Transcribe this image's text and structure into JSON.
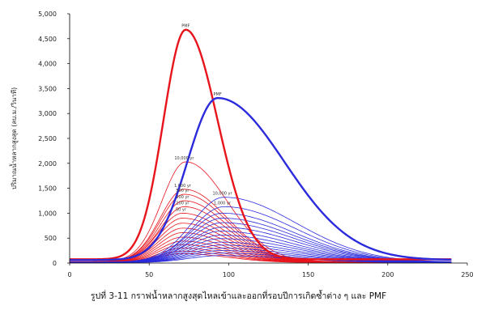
{
  "caption": "รูปที่ 3-11  กราฟน้ำหลากสูงสุดไหลเข้าและออกที่รอบปีการเกิดซ้ำต่าง ๆ และ PMF",
  "colors": {
    "inflow": "#e8141c",
    "outflow": "#2b2bdc",
    "axis": "#000000"
  },
  "chart_data": {
    "type": "line",
    "title": "",
    "xlabel": "",
    "ylabel": "ปริมาณน้ำหลากสูงสุด (ลบ.ม./วินาที)",
    "xlim": [
      0,
      250
    ],
    "ylim": [
      0,
      5000
    ],
    "x_ticks": [
      0,
      50,
      100,
      150,
      200,
      250
    ],
    "x_tick_labels": [
      "0",
      "50",
      "100",
      "150",
      "200",
      "250"
    ],
    "y_ticks": [
      0,
      500,
      1000,
      1500,
      2000,
      2500,
      3000,
      3500,
      4000,
      4500,
      5000
    ],
    "y_tick_labels": [
      "0",
      "500",
      "1,000",
      "1,500",
      "2,000",
      "2,500",
      "3,000",
      "3,500",
      "4,000",
      "4,500",
      "5,000"
    ],
    "grid": false,
    "legend": "none",
    "x_range_data": [
      0,
      240
    ],
    "series": [
      {
        "group": "inflow",
        "label": "PMF",
        "peak_x": 73,
        "peak_y": 4680,
        "rise": 14,
        "fall": 20,
        "base": 75,
        "width": 2.4
      },
      {
        "group": "outflow",
        "label": "PMF",
        "peak_x": 93,
        "peak_y": 3310,
        "rise": 19,
        "fall": 42,
        "base": 60,
        "width": 2.4
      },
      {
        "group": "inflow",
        "label": "10,000 yr",
        "peak_x": 73,
        "peak_y": 2030,
        "rise": 15,
        "fall": 26,
        "base": 30,
        "width": 0.8
      },
      {
        "group": "inflow",
        "label": "1,000 yr",
        "peak_x": 72,
        "peak_y": 1480,
        "rise": 15,
        "fall": 27,
        "base": 25,
        "width": 0.8
      },
      {
        "group": "inflow",
        "label": "500 yr",
        "peak_x": 72,
        "peak_y": 1380,
        "rise": 15,
        "fall": 27,
        "base": 25,
        "width": 0.8
      },
      {
        "group": "inflow",
        "label": "200 yr",
        "peak_x": 72,
        "peak_y": 1250,
        "rise": 15,
        "fall": 27,
        "base": 22,
        "width": 0.8
      },
      {
        "group": "inflow",
        "label": "100 yr",
        "peak_x": 72,
        "peak_y": 1130,
        "rise": 15,
        "fall": 27,
        "base": 22,
        "width": 0.8
      },
      {
        "group": "inflow",
        "label": "50 yr",
        "peak_x": 71,
        "peak_y": 1000,
        "rise": 15,
        "fall": 28,
        "base": 20,
        "width": 0.8
      },
      {
        "group": "inflow",
        "label": "",
        "peak_x": 71,
        "peak_y": 900,
        "rise": 15,
        "fall": 28,
        "base": 20,
        "width": 0.8
      },
      {
        "group": "inflow",
        "label": "",
        "peak_x": 71,
        "peak_y": 800,
        "rise": 15,
        "fall": 28,
        "base": 18,
        "width": 0.8
      },
      {
        "group": "inflow",
        "label": "",
        "peak_x": 71,
        "peak_y": 700,
        "rise": 15,
        "fall": 28,
        "base": 18,
        "width": 0.8
      },
      {
        "group": "inflow",
        "label": "",
        "peak_x": 71,
        "peak_y": 610,
        "rise": 15,
        "fall": 28,
        "base": 15,
        "width": 0.8
      },
      {
        "group": "inflow",
        "label": "",
        "peak_x": 71,
        "peak_y": 520,
        "rise": 15,
        "fall": 28,
        "base": 15,
        "width": 0.8
      },
      {
        "group": "inflow",
        "label": "",
        "peak_x": 71,
        "peak_y": 440,
        "rise": 15,
        "fall": 28,
        "base": 12,
        "width": 0.8
      },
      {
        "group": "inflow",
        "label": "",
        "peak_x": 71,
        "peak_y": 370,
        "rise": 15,
        "fall": 28,
        "base": 12,
        "width": 0.8
      },
      {
        "group": "inflow",
        "label": "",
        "peak_x": 71,
        "peak_y": 300,
        "rise": 15,
        "fall": 28,
        "base": 10,
        "width": 0.8
      },
      {
        "group": "inflow",
        "label": "",
        "peak_x": 71,
        "peak_y": 240,
        "rise": 15,
        "fall": 28,
        "base": 10,
        "width": 0.8
      },
      {
        "group": "inflow",
        "label": "",
        "peak_x": 71,
        "peak_y": 190,
        "rise": 15,
        "fall": 28,
        "base": 8,
        "width": 0.8
      },
      {
        "group": "outflow",
        "label": "10,000 yr",
        "peak_x": 97,
        "peak_y": 1320,
        "rise": 20,
        "fall": 45,
        "base": 20,
        "width": 0.8
      },
      {
        "group": "outflow",
        "label": "1,000 yr",
        "peak_x": 97,
        "peak_y": 1130,
        "rise": 20,
        "fall": 45,
        "base": 18,
        "width": 0.8
      },
      {
        "group": "outflow",
        "label": "",
        "peak_x": 96,
        "peak_y": 1000,
        "rise": 20,
        "fall": 45,
        "base": 18,
        "width": 0.8
      },
      {
        "group": "outflow",
        "label": "",
        "peak_x": 96,
        "peak_y": 900,
        "rise": 20,
        "fall": 45,
        "base": 16,
        "width": 0.8
      },
      {
        "group": "outflow",
        "label": "",
        "peak_x": 96,
        "peak_y": 810,
        "rise": 20,
        "fall": 45,
        "base": 16,
        "width": 0.8
      },
      {
        "group": "outflow",
        "label": "",
        "peak_x": 96,
        "peak_y": 720,
        "rise": 20,
        "fall": 45,
        "base": 14,
        "width": 0.8
      },
      {
        "group": "outflow",
        "label": "",
        "peak_x": 95,
        "peak_y": 640,
        "rise": 20,
        "fall": 45,
        "base": 14,
        "width": 0.8
      },
      {
        "group": "outflow",
        "label": "",
        "peak_x": 95,
        "peak_y": 560,
        "rise": 20,
        "fall": 45,
        "base": 12,
        "width": 0.8
      },
      {
        "group": "outflow",
        "label": "",
        "peak_x": 95,
        "peak_y": 490,
        "rise": 20,
        "fall": 45,
        "base": 12,
        "width": 0.8
      },
      {
        "group": "outflow",
        "label": "",
        "peak_x": 95,
        "peak_y": 420,
        "rise": 20,
        "fall": 45,
        "base": 10,
        "width": 0.8
      },
      {
        "group": "outflow",
        "label": "",
        "peak_x": 95,
        "peak_y": 360,
        "rise": 20,
        "fall": 45,
        "base": 10,
        "width": 0.8
      },
      {
        "group": "outflow",
        "label": "",
        "peak_x": 95,
        "peak_y": 300,
        "rise": 20,
        "fall": 45,
        "base": 8,
        "width": 0.8
      },
      {
        "group": "outflow",
        "label": "",
        "peak_x": 95,
        "peak_y": 250,
        "rise": 20,
        "fall": 45,
        "base": 8,
        "width": 0.8
      },
      {
        "group": "outflow",
        "label": "",
        "peak_x": 95,
        "peak_y": 200,
        "rise": 20,
        "fall": 45,
        "base": 6,
        "width": 0.8
      },
      {
        "group": "outflow",
        "label": "",
        "peak_x": 95,
        "peak_y": 150,
        "rise": 20,
        "fall": 45,
        "base": 6,
        "width": 0.8
      }
    ]
  }
}
